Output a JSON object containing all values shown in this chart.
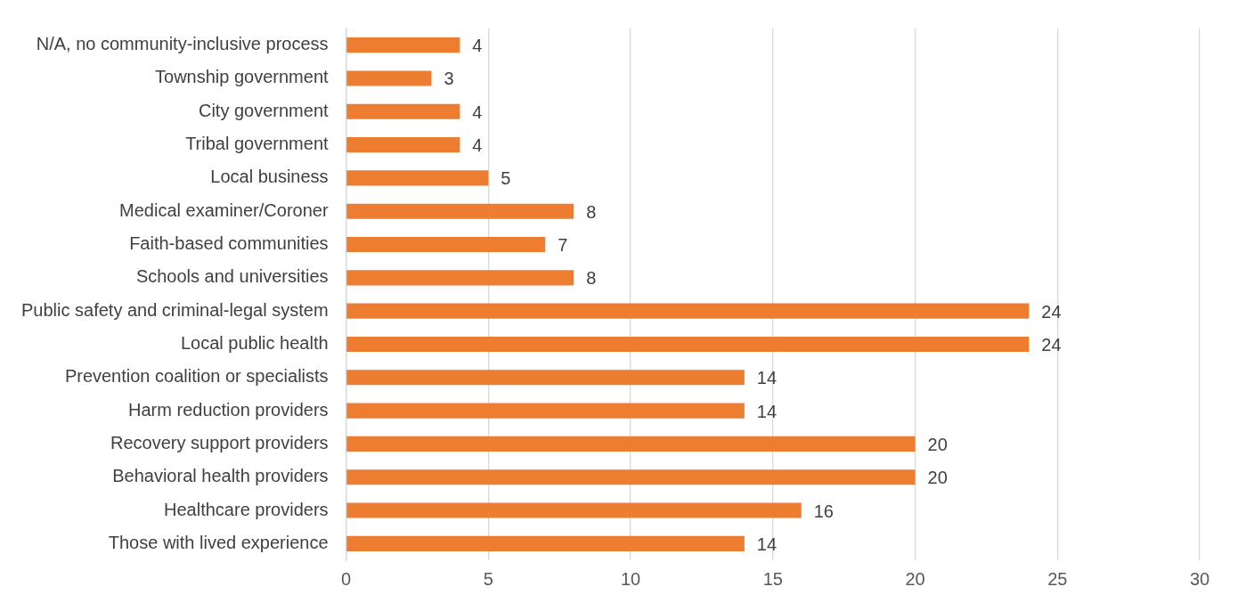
{
  "chart_data": {
    "type": "bar",
    "orientation": "horizontal",
    "categories": [
      "N/A, no community-inclusive process",
      "Township government",
      "City government",
      "Tribal government",
      "Local business",
      "Medical examiner/Coroner",
      "Faith-based communities",
      "Schools and universities",
      "Public safety and criminal-legal system",
      "Local public health",
      "Prevention coalition or specialists",
      "Harm reduction providers",
      "Recovery support providers",
      "Behavioral health providers",
      "Healthcare providers",
      "Those with lived experience"
    ],
    "values": [
      4,
      3,
      4,
      4,
      5,
      8,
      7,
      8,
      24,
      24,
      14,
      14,
      20,
      20,
      16,
      14
    ],
    "color": "#ed7d31",
    "xlim": [
      0,
      30
    ],
    "xticks": [
      0,
      5,
      10,
      15,
      20,
      25,
      30
    ],
    "grid": "x",
    "data_labels": true
  }
}
